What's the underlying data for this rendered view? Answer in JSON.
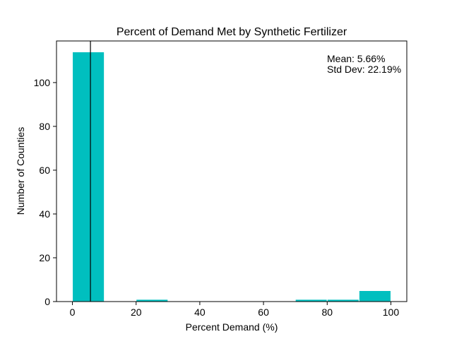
{
  "chart_data": {
    "type": "bar",
    "title": "Percent of Demand Met by Synthetic Fertilizer",
    "xlabel": "Percent Demand (%)",
    "ylabel": "Number of Counties",
    "xlim": [
      -5,
      105
    ],
    "ylim": [
      0,
      119
    ],
    "xticks": [
      0,
      20,
      40,
      60,
      80,
      100
    ],
    "yticks": [
      0,
      20,
      40,
      60,
      80,
      100
    ],
    "bin_edges": [
      0,
      10,
      20,
      30,
      40,
      50,
      60,
      70,
      80,
      90,
      100
    ],
    "values": [
      114,
      0,
      1,
      0,
      0,
      0,
      0,
      1,
      1,
      5
    ],
    "bar_color": "#00bfbf",
    "edge_color": "#ffffff",
    "mean_line_x": 5.66,
    "mean_line_color": "#000000",
    "annotations": {
      "mean": "Mean: 5.66%",
      "std": "Std Dev: 22.19%"
    }
  }
}
